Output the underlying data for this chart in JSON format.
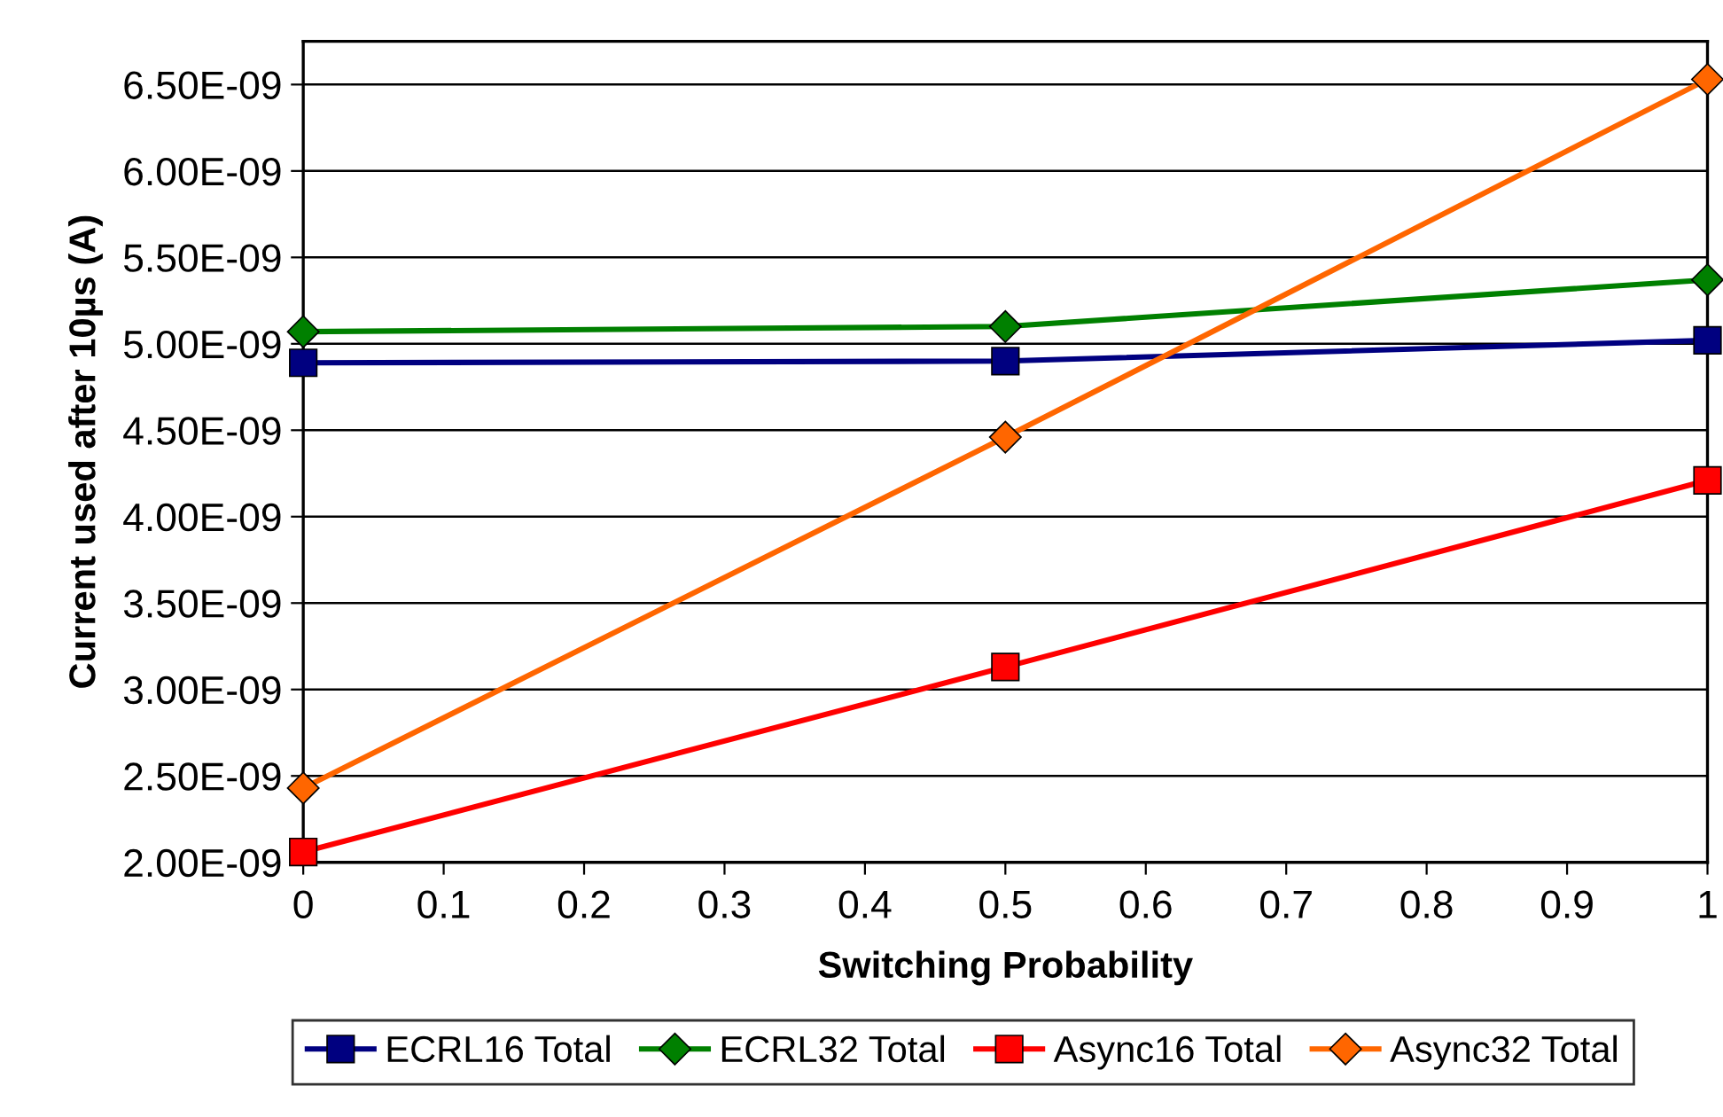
{
  "chart_data": {
    "type": "line",
    "xlabel": "Switching Probability",
    "ylabel": "Current used after 10µs (A)",
    "x": [
      0,
      0.5,
      1
    ],
    "series": [
      {
        "name": "ECRL16 Total",
        "color": "#000080",
        "marker": "square",
        "values": [
          4.89e-09,
          4.9e-09,
          5.02e-09
        ]
      },
      {
        "name": "ECRL32 Total",
        "color": "#008000",
        "marker": "diamond",
        "values": [
          5.07e-09,
          5.1e-09,
          5.37e-09
        ]
      },
      {
        "name": "Async16 Total",
        "color": "#ff0000",
        "marker": "square",
        "values": [
          2.06e-09,
          3.13e-09,
          4.21e-09
        ]
      },
      {
        "name": "Async32 Total",
        "color": "#ff6600",
        "marker": "diamond",
        "values": [
          2.43e-09,
          4.46e-09,
          6.53e-09
        ]
      }
    ],
    "xlim": [
      0,
      1
    ],
    "xticks": [
      0,
      0.1,
      0.2,
      0.3,
      0.4,
      0.5,
      0.6,
      0.7,
      0.8,
      0.9,
      1
    ],
    "ylim": [
      2e-09,
      6.75e-09
    ],
    "yticks": [
      {
        "value": 2e-09,
        "label": "2.00E-09"
      },
      {
        "value": 2.5e-09,
        "label": "2.50E-09"
      },
      {
        "value": 3e-09,
        "label": "3.00E-09"
      },
      {
        "value": 3.5e-09,
        "label": "3.50E-09"
      },
      {
        "value": 4e-09,
        "label": "4.00E-09"
      },
      {
        "value": 4.5e-09,
        "label": "4.50E-09"
      },
      {
        "value": 5e-09,
        "label": "5.00E-09"
      },
      {
        "value": 5.5e-09,
        "label": "5.50E-09"
      },
      {
        "value": 6e-09,
        "label": "6.00E-09"
      },
      {
        "value": 6.5e-09,
        "label": "6.50E-09"
      }
    ],
    "grid": "y",
    "legend": "bottom",
    "line_style": "solid"
  }
}
